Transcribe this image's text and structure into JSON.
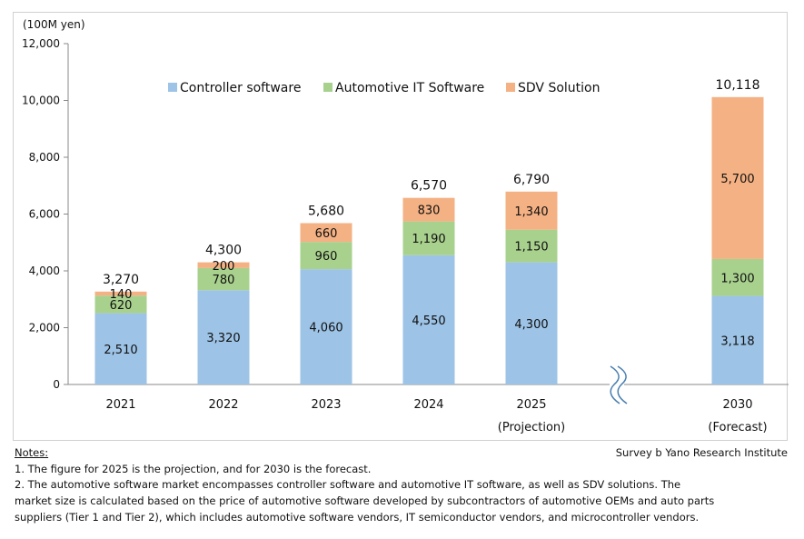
{
  "chart_data": {
    "type": "bar",
    "stacked": true,
    "unit_label": "(100M yen)",
    "ylim": [
      0,
      12000
    ],
    "y_ticks": [
      0,
      2000,
      4000,
      6000,
      8000,
      10000,
      12000
    ],
    "y_tick_labels": [
      "0",
      "2,000",
      "4,000",
      "6,000",
      "8,000",
      "10,000",
      "12,000"
    ],
    "categories": [
      "2021",
      "2022",
      "2023",
      "2024",
      "2025",
      "2030"
    ],
    "category_sublabels": [
      "",
      "",
      "",
      "",
      "(Projection)",
      "(Forecast)"
    ],
    "axis_break_between": [
      "2025",
      "2030"
    ],
    "series": [
      {
        "name": "Controller software",
        "color": "#9dc3e6",
        "values": [
          2510,
          3320,
          4060,
          4550,
          4300,
          3118
        ],
        "labels": [
          "2,510",
          "3,320",
          "4,060",
          "4,550",
          "4,300",
          "3,118"
        ]
      },
      {
        "name": "Automotive IT Software",
        "color": "#a9d18e",
        "values": [
          620,
          780,
          960,
          1190,
          1150,
          1300
        ],
        "labels": [
          "620",
          "780",
          "960",
          "1,190",
          "1,150",
          "1,300"
        ]
      },
      {
        "name": "SDV Solution",
        "color": "#f4b183",
        "values": [
          140,
          200,
          660,
          830,
          1340,
          5700
        ],
        "labels": [
          "140",
          "200",
          "660",
          "830",
          "1,340",
          "5,700"
        ]
      }
    ],
    "totals": [
      3270,
      4300,
      5680,
      6570,
      6790,
      10118
    ],
    "total_labels": [
      "3,270",
      "4,300",
      "5,680",
      "6,570",
      "6,790",
      "10,118"
    ],
    "legend_position": "top-center",
    "grid": false
  },
  "footer": {
    "notes_title": "Notes:",
    "note_1": "1.  The figure for 2025 is the projection, and for 2030 is the forecast.",
    "note_2_line1": "2.  The automotive software market encompasses controller software and automotive IT software, as well as SDV solutions. The",
    "note_2_line2": "market size is calculated based on the price of automotive software developed by subcontractors of automotive OEMs and auto parts",
    "note_2_line3": "suppliers (Tier 1 and Tier 2), which includes automotive software vendors, IT semiconductor vendors, and microcontroller vendors.",
    "source": "Survey b Yano Research Institute"
  }
}
